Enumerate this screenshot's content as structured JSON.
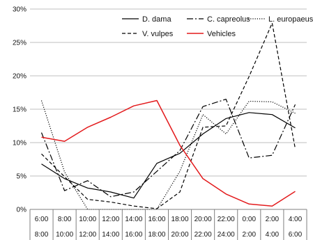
{
  "chart_data": {
    "type": "line",
    "title": "",
    "xlabel": "",
    "ylabel": "",
    "ylim": [
      0,
      30
    ],
    "yticks": [
      0,
      5,
      10,
      15,
      20,
      25,
      30
    ],
    "ytick_labels": [
      "0%",
      "5%",
      "10%",
      "15%",
      "20%",
      "25%",
      "30%"
    ],
    "grid": true,
    "legend_position": "top-right",
    "categories": [
      {
        "start": "6:00",
        "end": "8:00"
      },
      {
        "start": "8:00",
        "end": "10:00"
      },
      {
        "start": "10:00",
        "end": "12:00"
      },
      {
        "start": "12:00",
        "end": "14:00"
      },
      {
        "start": "14:00",
        "end": "16:00"
      },
      {
        "start": "16:00",
        "end": "18:00"
      },
      {
        "start": "18:00",
        "end": "20:00"
      },
      {
        "start": "20:00",
        "end": "22:00"
      },
      {
        "start": "22:00",
        "end": "24:00"
      },
      {
        "start": "0:00",
        "end": "2:00"
      },
      {
        "start": "2:00",
        "end": "4:00"
      },
      {
        "start": "4:00",
        "end": "6:00"
      }
    ],
    "series": [
      {
        "name": "D. dama",
        "style": "solid",
        "color": "#000000",
        "values": [
          6.8,
          4.6,
          3.2,
          2.6,
          1.7,
          6.9,
          8.4,
          11.3,
          13.6,
          14.5,
          14.2,
          12.2
        ]
      },
      {
        "name": "C. capreolus",
        "style": "dashdot",
        "color": "#000000",
        "values": [
          11.5,
          2.8,
          4.3,
          1.9,
          2.6,
          5.7,
          8.8,
          15.4,
          16.5,
          7.7,
          8.1,
          15.7
        ]
      },
      {
        "name": "L. europaeus",
        "style": "dotted",
        "color": "#000000",
        "values": [
          16.3,
          5.6,
          0.0,
          0.0,
          0.0,
          0.0,
          5.7,
          14.2,
          11.3,
          16.2,
          16.1,
          14.4
        ]
      },
      {
        "name": "V. vulpes",
        "style": "dashed",
        "color": "#000000",
        "values": [
          8.3,
          4.9,
          1.5,
          1.1,
          0.5,
          0.1,
          2.6,
          12.3,
          12.5,
          19.9,
          27.9,
          9.1
        ]
      },
      {
        "name": "Vehicles",
        "style": "solid",
        "color": "#e31a1c",
        "values": [
          10.8,
          10.2,
          12.3,
          13.8,
          15.5,
          16.3,
          9.6,
          4.6,
          2.3,
          0.8,
          0.5,
          2.7
        ]
      }
    ]
  }
}
